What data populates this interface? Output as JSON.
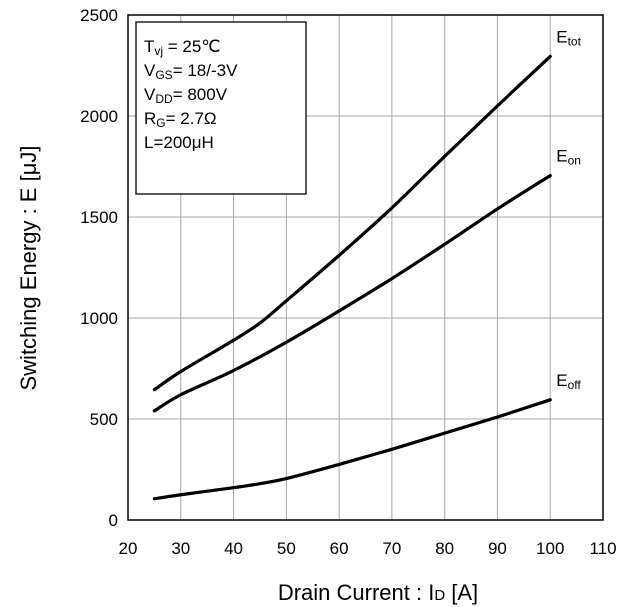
{
  "chart_data": {
    "type": "line",
    "xlabel": {
      "main": "Drain Current : I",
      "sub": "D",
      "unit": " [A]"
    },
    "ylabel": "Switching Energy : E [μJ]",
    "xlim": [
      20,
      110
    ],
    "ylim": [
      0,
      2500
    ],
    "xticks": [
      20,
      30,
      40,
      50,
      60,
      70,
      80,
      90,
      100,
      110
    ],
    "yticks": [
      0,
      500,
      1000,
      1500,
      2000,
      2500
    ],
    "grid": true,
    "conditions": [
      {
        "main": "T",
        "sub": "vj",
        "rest": " = 25℃"
      },
      {
        "main": "V",
        "sub": "GS",
        "rest": "= 18/-3V"
      },
      {
        "main": "V",
        "sub": "DD",
        "rest": "= 800V"
      },
      {
        "main": "R",
        "sub": "G",
        "rest": "= 2.7Ω"
      },
      {
        "main": "L=200μH",
        "sub": "",
        "rest": ""
      }
    ],
    "series": [
      {
        "name": "E",
        "sub": "tot",
        "x": [
          25,
          30,
          40,
          45,
          50,
          60,
          70,
          80,
          90,
          100
        ],
        "y": [
          645,
          735,
          890,
          975,
          1085,
          1310,
          1545,
          1800,
          2050,
          2295
        ]
      },
      {
        "name": "E",
        "sub": "on",
        "x": [
          25,
          30,
          40,
          50,
          60,
          70,
          80,
          90,
          100
        ],
        "y": [
          540,
          620,
          740,
          880,
          1035,
          1195,
          1365,
          1540,
          1705
        ]
      },
      {
        "name": "E",
        "sub": "off",
        "x": [
          25,
          30,
          40,
          45,
          50,
          60,
          70,
          80,
          90,
          100
        ],
        "y": [
          105,
          125,
          160,
          180,
          205,
          275,
          350,
          430,
          510,
          595
        ]
      }
    ]
  }
}
